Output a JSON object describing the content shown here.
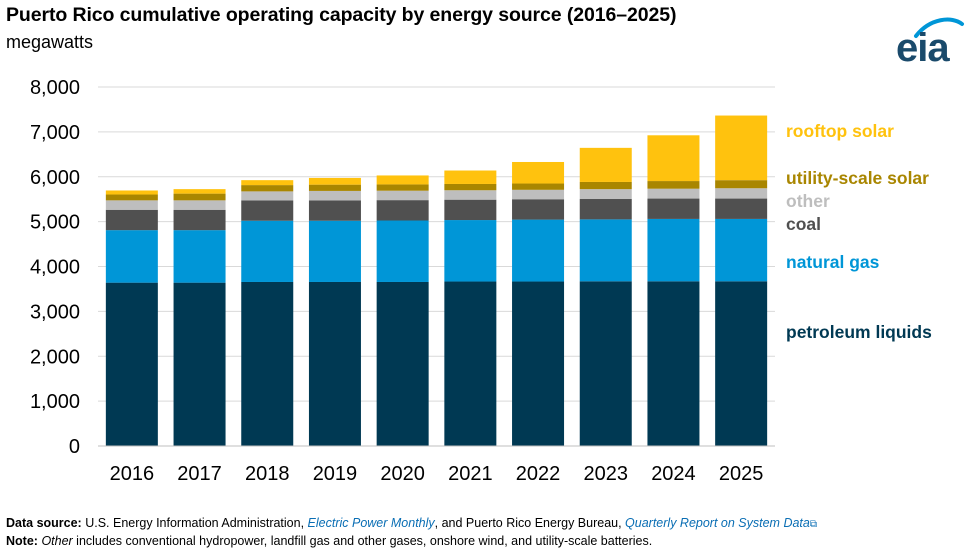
{
  "title": "Puerto Rico cumulative operating capacity by energy source (2016–2025)",
  "subtitle": "megawatts",
  "logo_text": "eia",
  "colors": {
    "petroleum liquids": "#003953",
    "natural gas": "#0096d7",
    "coal": "#505050",
    "other": "#bebebe",
    "utility-scale solar": "#a98600",
    "rooftop solar": "#ffc20e"
  },
  "chart_data": {
    "type": "bar",
    "stacked": true,
    "categories": [
      "2016",
      "2017",
      "2018",
      "2019",
      "2020",
      "2021",
      "2022",
      "2023",
      "2024",
      "2025"
    ],
    "series": [
      {
        "name": "petroleum liquids",
        "values": [
          3640,
          3640,
          3655,
          3655,
          3655,
          3665,
          3665,
          3670,
          3670,
          3670
        ]
      },
      {
        "name": "natural gas",
        "values": [
          1170,
          1170,
          1365,
          1365,
          1370,
          1370,
          1380,
          1380,
          1390,
          1390
        ]
      },
      {
        "name": "coal",
        "values": [
          454,
          454,
          454,
          454,
          454,
          454,
          454,
          454,
          454,
          454
        ]
      },
      {
        "name": "other",
        "values": [
          210,
          210,
          200,
          210,
          210,
          210,
          210,
          220,
          220,
          230
        ]
      },
      {
        "name": "utility-scale solar",
        "values": [
          130,
          150,
          140,
          140,
          140,
          140,
          140,
          160,
          170,
          180
        ]
      },
      {
        "name": "rooftop solar",
        "values": [
          90,
          100,
          110,
          150,
          200,
          300,
          480,
          760,
          1020,
          1440
        ]
      }
    ],
    "ylim": [
      0,
      8000
    ],
    "yticks": [
      0,
      1000,
      2000,
      3000,
      4000,
      5000,
      6000,
      7000,
      8000
    ],
    "ytick_labels": [
      "0",
      "1,000",
      "2,000",
      "3,000",
      "4,000",
      "5,000",
      "6,000",
      "7,000",
      "8,000"
    ],
    "grid": true,
    "legend": "right, labels beside bars"
  },
  "source": {
    "label": "Data source:",
    "text1": " U.S. Energy Information Administration, ",
    "link1": "Electric Power Monthly",
    "text2": ", and Puerto Rico Energy Bureau, ",
    "link2": "Quarterly Report on System Data",
    "link2_icon": "⧉"
  },
  "note": {
    "label": "Note:",
    "term": "Other",
    "text": " includes conventional hydropower, landfill gas and other gases, onshore wind, and utility-scale batteries."
  }
}
